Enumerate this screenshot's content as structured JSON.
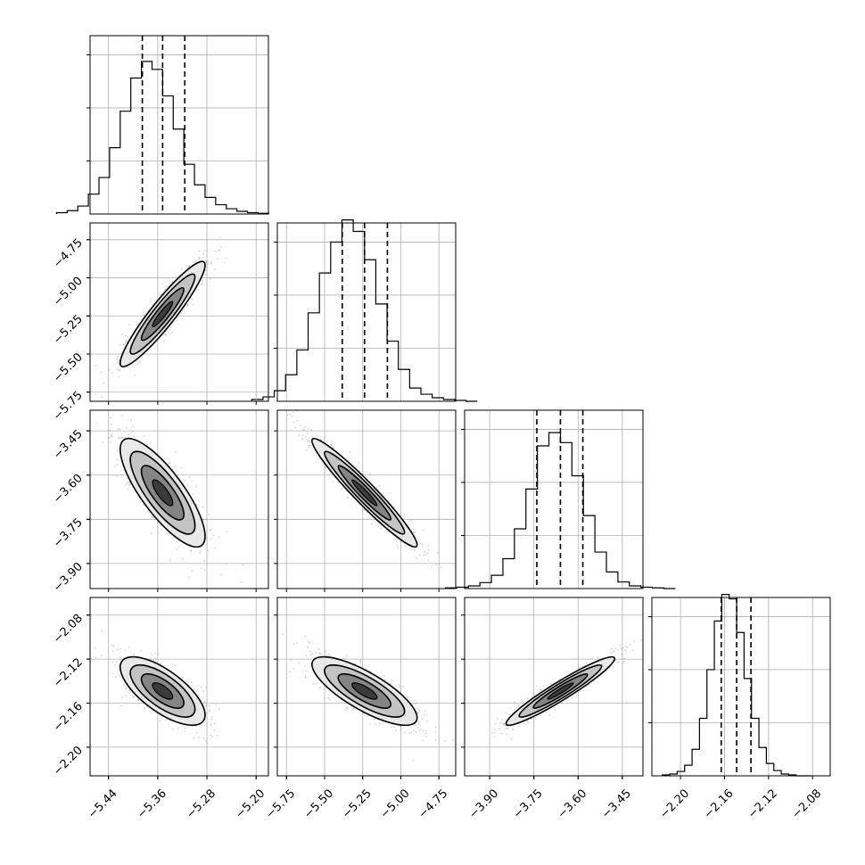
{
  "chart_data": {
    "type": "corner",
    "parameters": [
      {
        "range": [
          -5.47,
          -5.18
        ],
        "ticks": [
          -5.44,
          -5.36,
          -5.28,
          -5.2
        ],
        "tick_labels": [
          "−5.44",
          "−5.36",
          "−5.28",
          "−5.20"
        ],
        "quantiles": [
          -5.385,
          -5.352,
          -5.316
        ]
      },
      {
        "range": [
          -5.81,
          -4.64
        ],
        "ticks": [
          -5.75,
          -5.5,
          -5.25,
          -5.0,
          -4.75
        ],
        "tick_labels": [
          "−5.75",
          "−5.50",
          "−5.25",
          "−5.00",
          "−4.75"
        ],
        "quantiles": [
          -5.384,
          -5.238,
          -5.088
        ]
      },
      {
        "range": [
          -3.985,
          -3.38
        ],
        "ticks": [
          -3.9,
          -3.75,
          -3.6,
          -3.45
        ],
        "tick_labels": [
          "−3.90",
          "−3.75",
          "−3.60",
          "−3.45"
        ],
        "quantiles": [
          -3.74,
          -3.66,
          -3.584
        ]
      },
      {
        "range": [
          -2.226,
          -2.064
        ],
        "ticks": [
          -2.2,
          -2.16,
          -2.12,
          -2.08
        ],
        "tick_labels": [
          "−2.20",
          "−2.16",
          "−2.12",
          "−2.08"
        ],
        "quantiles": [
          -2.163,
          -2.149,
          -2.136
        ]
      }
    ],
    "histograms": [
      {
        "bins": 20,
        "counts": [
          2,
          5,
          12,
          30,
          55,
          100,
          155,
          205,
          230,
          218,
          178,
          128,
          75,
          44,
          25,
          14,
          8,
          4,
          2,
          1
        ],
        "y_ticks": [
          80,
          160,
          240
        ]
      },
      {
        "bins": 20,
        "counts": [
          2,
          5,
          12,
          30,
          58,
          100,
          145,
          180,
          205,
          192,
          160,
          110,
          68,
          36,
          15,
          8,
          4,
          2,
          1,
          0
        ],
        "y_ticks": [
          60,
          120,
          180
        ]
      },
      {
        "bins": 20,
        "counts": [
          1,
          2,
          4,
          9,
          20,
          45,
          90,
          150,
          215,
          235,
          220,
          170,
          110,
          55,
          25,
          10,
          4,
          2,
          1,
          0
        ],
        "y_ticks": [
          80,
          160,
          240
        ]
      },
      {
        "bins": 20,
        "counts": [
          1,
          2,
          5,
          12,
          30,
          65,
          120,
          175,
          205,
          200,
          162,
          110,
          65,
          32,
          14,
          6,
          2,
          1,
          0,
          0
        ],
        "y_ticks": [
          60,
          120,
          180
        ]
      }
    ],
    "pairs": [
      {
        "row": 1,
        "col": 0,
        "mean": [
          -5.352,
          -5.238
        ],
        "sd": [
          0.03,
          0.15
        ],
        "corr": 0.93
      },
      {
        "row": 2,
        "col": 0,
        "mean": [
          -5.352,
          -3.66
        ],
        "sd": [
          0.03,
          0.08
        ],
        "corr": -0.8
      },
      {
        "row": 2,
        "col": 1,
        "mean": [
          -5.238,
          -3.66
        ],
        "sd": [
          0.15,
          0.08
        ],
        "corr": -0.96
      },
      {
        "row": 3,
        "col": 0,
        "mean": [
          -5.352,
          -2.149
        ],
        "sd": [
          0.03,
          0.0135
        ],
        "corr": -0.7
      },
      {
        "row": 3,
        "col": 1,
        "mean": [
          -5.238,
          -2.149
        ],
        "sd": [
          0.15,
          0.0135
        ],
        "corr": -0.78
      },
      {
        "row": 3,
        "col": 2,
        "mean": [
          -3.66,
          -2.149
        ],
        "sd": [
          0.08,
          0.0135
        ],
        "corr": 0.95
      }
    ],
    "contour_levels": [
      "0.5-sigma",
      "1-sigma",
      "1.5-sigma",
      "2-sigma"
    ],
    "grid": true,
    "colors": {
      "line": "#000000",
      "scatter": "#7f7f7f",
      "grid": "#b0b0b0"
    }
  }
}
